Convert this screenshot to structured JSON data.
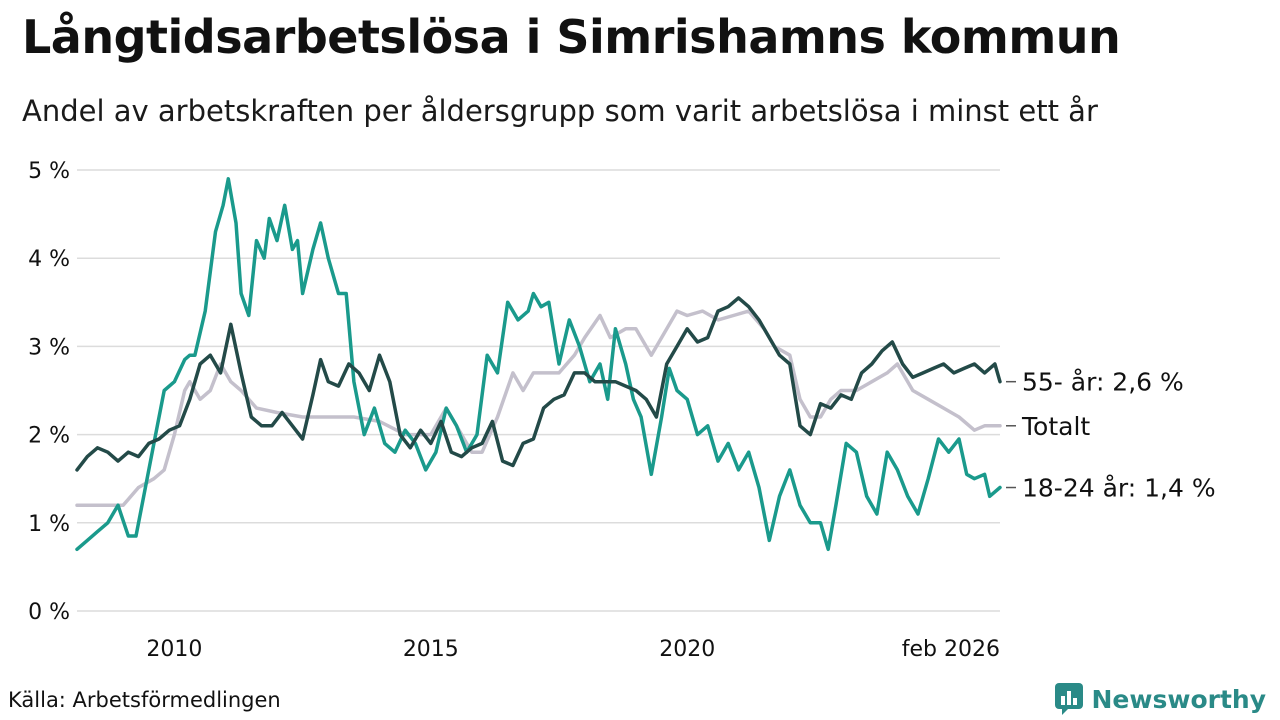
{
  "chart_data": {
    "type": "line",
    "title": "Långtidsarbetslösa i Simrishamns kommun",
    "subtitle": "Andel av arbetskraften per åldersgrupp som varit arbetslösa i minst ett år",
    "y_unit": "%",
    "ylim": [
      0,
      5
    ],
    "y_ticks": [
      {
        "value": 0,
        "label": "0 %"
      },
      {
        "value": 1,
        "label": "1 %"
      },
      {
        "value": 2,
        "label": "2 %"
      },
      {
        "value": 3,
        "label": "3 %"
      },
      {
        "value": 4,
        "label": "4 %"
      },
      {
        "value": 5,
        "label": "5 %"
      }
    ],
    "xlim": [
      2008.1,
      2026.1
    ],
    "x_ticks": [
      {
        "value": 2010,
        "label": "2010"
      },
      {
        "value": 2015,
        "label": "2015"
      },
      {
        "value": 2020,
        "label": "2020"
      },
      {
        "value": 2026.1,
        "label": "feb 2026"
      }
    ],
    "series": [
      {
        "name": "Totalt",
        "end_label": "Totalt",
        "color": "#c4c0cc",
        "points": [
          [
            2008.1,
            1.2
          ],
          [
            2009.0,
            1.2
          ],
          [
            2009.3,
            1.4
          ],
          [
            2009.6,
            1.5
          ],
          [
            2009.8,
            1.6
          ],
          [
            2010.0,
            2.0
          ],
          [
            2010.2,
            2.5
          ],
          [
            2010.3,
            2.6
          ],
          [
            2010.5,
            2.4
          ],
          [
            2010.7,
            2.5
          ],
          [
            2010.9,
            2.8
          ],
          [
            2011.1,
            2.6
          ],
          [
            2011.3,
            2.5
          ],
          [
            2011.6,
            2.3
          ],
          [
            2012.0,
            2.25
          ],
          [
            2012.5,
            2.2
          ],
          [
            2013.0,
            2.2
          ],
          [
            2013.5,
            2.2
          ],
          [
            2014.0,
            2.15
          ],
          [
            2014.5,
            2.0
          ],
          [
            2015.0,
            2.0
          ],
          [
            2015.3,
            2.3
          ],
          [
            2015.5,
            2.1
          ],
          [
            2015.8,
            1.8
          ],
          [
            2016.0,
            1.8
          ],
          [
            2016.3,
            2.2
          ],
          [
            2016.6,
            2.7
          ],
          [
            2016.8,
            2.5
          ],
          [
            2017.0,
            2.7
          ],
          [
            2017.5,
            2.7
          ],
          [
            2017.8,
            2.9
          ],
          [
            2018.0,
            3.1
          ],
          [
            2018.3,
            3.35
          ],
          [
            2018.5,
            3.1
          ],
          [
            2018.8,
            3.2
          ],
          [
            2019.0,
            3.2
          ],
          [
            2019.3,
            2.9
          ],
          [
            2019.5,
            3.1
          ],
          [
            2019.8,
            3.4
          ],
          [
            2020.0,
            3.35
          ],
          [
            2020.3,
            3.4
          ],
          [
            2020.6,
            3.3
          ],
          [
            2020.9,
            3.35
          ],
          [
            2021.2,
            3.4
          ],
          [
            2021.5,
            3.2
          ],
          [
            2021.7,
            3.0
          ],
          [
            2022.0,
            2.9
          ],
          [
            2022.2,
            2.4
          ],
          [
            2022.4,
            2.2
          ],
          [
            2022.6,
            2.2
          ],
          [
            2022.8,
            2.4
          ],
          [
            2023.0,
            2.5
          ],
          [
            2023.3,
            2.5
          ],
          [
            2023.6,
            2.6
          ],
          [
            2023.9,
            2.7
          ],
          [
            2024.1,
            2.8
          ],
          [
            2024.4,
            2.5
          ],
          [
            2024.7,
            2.4
          ],
          [
            2025.0,
            2.3
          ],
          [
            2025.3,
            2.2
          ],
          [
            2025.6,
            2.05
          ],
          [
            2025.8,
            2.1
          ],
          [
            2026.1,
            2.1
          ]
        ]
      },
      {
        "name": "18-24 år",
        "end_label": "18-24 år: 1,4 %",
        "color": "#1a9a8c",
        "points": [
          [
            2008.1,
            0.7
          ],
          [
            2008.3,
            0.8
          ],
          [
            2008.5,
            0.9
          ],
          [
            2008.7,
            1.0
          ],
          [
            2008.9,
            1.2
          ],
          [
            2009.1,
            0.85
          ],
          [
            2009.25,
            0.85
          ],
          [
            2009.4,
            1.3
          ],
          [
            2009.6,
            1.9
          ],
          [
            2009.8,
            2.5
          ],
          [
            2010.0,
            2.6
          ],
          [
            2010.2,
            2.85
          ],
          [
            2010.3,
            2.9
          ],
          [
            2010.4,
            2.9
          ],
          [
            2010.6,
            3.4
          ],
          [
            2010.8,
            4.3
          ],
          [
            2010.95,
            4.6
          ],
          [
            2011.05,
            4.9
          ],
          [
            2011.2,
            4.4
          ],
          [
            2011.3,
            3.6
          ],
          [
            2011.45,
            3.35
          ],
          [
            2011.6,
            4.2
          ],
          [
            2011.75,
            4.0
          ],
          [
            2011.85,
            4.45
          ],
          [
            2012.0,
            4.2
          ],
          [
            2012.15,
            4.6
          ],
          [
            2012.3,
            4.1
          ],
          [
            2012.4,
            4.2
          ],
          [
            2012.5,
            3.6
          ],
          [
            2012.7,
            4.1
          ],
          [
            2012.85,
            4.4
          ],
          [
            2013.0,
            4.0
          ],
          [
            2013.2,
            3.6
          ],
          [
            2013.35,
            3.6
          ],
          [
            2013.5,
            2.6
          ],
          [
            2013.7,
            2.0
          ],
          [
            2013.9,
            2.3
          ],
          [
            2014.1,
            1.9
          ],
          [
            2014.3,
            1.8
          ],
          [
            2014.5,
            2.05
          ],
          [
            2014.7,
            1.9
          ],
          [
            2014.9,
            1.6
          ],
          [
            2015.1,
            1.8
          ],
          [
            2015.3,
            2.3
          ],
          [
            2015.5,
            2.1
          ],
          [
            2015.7,
            1.8
          ],
          [
            2015.9,
            2.0
          ],
          [
            2016.1,
            2.9
          ],
          [
            2016.3,
            2.7
          ],
          [
            2016.5,
            3.5
          ],
          [
            2016.7,
            3.3
          ],
          [
            2016.9,
            3.4
          ],
          [
            2017.0,
            3.6
          ],
          [
            2017.15,
            3.45
          ],
          [
            2017.3,
            3.5
          ],
          [
            2017.5,
            2.8
          ],
          [
            2017.7,
            3.3
          ],
          [
            2017.9,
            3.0
          ],
          [
            2018.1,
            2.6
          ],
          [
            2018.3,
            2.8
          ],
          [
            2018.45,
            2.4
          ],
          [
            2018.6,
            3.2
          ],
          [
            2018.8,
            2.8
          ],
          [
            2018.95,
            2.4
          ],
          [
            2019.1,
            2.2
          ],
          [
            2019.3,
            1.55
          ],
          [
            2019.5,
            2.2
          ],
          [
            2019.65,
            2.75
          ],
          [
            2019.8,
            2.5
          ],
          [
            2020.0,
            2.4
          ],
          [
            2020.2,
            2.0
          ],
          [
            2020.4,
            2.1
          ],
          [
            2020.6,
            1.7
          ],
          [
            2020.8,
            1.9
          ],
          [
            2021.0,
            1.6
          ],
          [
            2021.2,
            1.8
          ],
          [
            2021.4,
            1.4
          ],
          [
            2021.6,
            0.8
          ],
          [
            2021.8,
            1.3
          ],
          [
            2022.0,
            1.6
          ],
          [
            2022.2,
            1.2
          ],
          [
            2022.4,
            1.0
          ],
          [
            2022.6,
            1.0
          ],
          [
            2022.75,
            0.7
          ],
          [
            2022.9,
            1.2
          ],
          [
            2023.1,
            1.9
          ],
          [
            2023.3,
            1.8
          ],
          [
            2023.5,
            1.3
          ],
          [
            2023.7,
            1.1
          ],
          [
            2023.9,
            1.8
          ],
          [
            2024.1,
            1.6
          ],
          [
            2024.3,
            1.3
          ],
          [
            2024.5,
            1.1
          ],
          [
            2024.7,
            1.5
          ],
          [
            2024.9,
            1.95
          ],
          [
            2025.1,
            1.8
          ],
          [
            2025.3,
            1.95
          ],
          [
            2025.45,
            1.55
          ],
          [
            2025.6,
            1.5
          ],
          [
            2025.8,
            1.55
          ],
          [
            2025.9,
            1.3
          ],
          [
            2026.1,
            1.4
          ]
        ]
      },
      {
        "name": "55- år",
        "end_label": "55- år: 2,6 %",
        "color": "#234a48",
        "points": [
          [
            2008.1,
            1.6
          ],
          [
            2008.3,
            1.75
          ],
          [
            2008.5,
            1.85
          ],
          [
            2008.7,
            1.8
          ],
          [
            2008.9,
            1.7
          ],
          [
            2009.1,
            1.8
          ],
          [
            2009.3,
            1.75
          ],
          [
            2009.5,
            1.9
          ],
          [
            2009.7,
            1.95
          ],
          [
            2009.9,
            2.05
          ],
          [
            2010.1,
            2.1
          ],
          [
            2010.3,
            2.4
          ],
          [
            2010.5,
            2.8
          ],
          [
            2010.7,
            2.9
          ],
          [
            2010.9,
            2.7
          ],
          [
            2011.1,
            3.25
          ],
          [
            2011.3,
            2.7
          ],
          [
            2011.5,
            2.2
          ],
          [
            2011.7,
            2.1
          ],
          [
            2011.9,
            2.1
          ],
          [
            2012.1,
            2.25
          ],
          [
            2012.3,
            2.1
          ],
          [
            2012.5,
            1.95
          ],
          [
            2012.7,
            2.45
          ],
          [
            2012.85,
            2.85
          ],
          [
            2013.0,
            2.6
          ],
          [
            2013.2,
            2.55
          ],
          [
            2013.4,
            2.8
          ],
          [
            2013.6,
            2.7
          ],
          [
            2013.8,
            2.5
          ],
          [
            2014.0,
            2.9
          ],
          [
            2014.2,
            2.6
          ],
          [
            2014.4,
            2.0
          ],
          [
            2014.6,
            1.85
          ],
          [
            2014.8,
            2.05
          ],
          [
            2015.0,
            1.9
          ],
          [
            2015.2,
            2.15
          ],
          [
            2015.4,
            1.8
          ],
          [
            2015.6,
            1.75
          ],
          [
            2015.8,
            1.85
          ],
          [
            2016.0,
            1.9
          ],
          [
            2016.2,
            2.15
          ],
          [
            2016.4,
            1.7
          ],
          [
            2016.6,
            1.65
          ],
          [
            2016.8,
            1.9
          ],
          [
            2017.0,
            1.95
          ],
          [
            2017.2,
            2.3
          ],
          [
            2017.4,
            2.4
          ],
          [
            2017.6,
            2.45
          ],
          [
            2017.8,
            2.7
          ],
          [
            2018.0,
            2.7
          ],
          [
            2018.2,
            2.6
          ],
          [
            2018.4,
            2.6
          ],
          [
            2018.6,
            2.6
          ],
          [
            2018.8,
            2.55
          ],
          [
            2019.0,
            2.5
          ],
          [
            2019.2,
            2.4
          ],
          [
            2019.4,
            2.2
          ],
          [
            2019.6,
            2.8
          ],
          [
            2019.8,
            3.0
          ],
          [
            2020.0,
            3.2
          ],
          [
            2020.2,
            3.05
          ],
          [
            2020.4,
            3.1
          ],
          [
            2020.6,
            3.4
          ],
          [
            2020.8,
            3.45
          ],
          [
            2021.0,
            3.55
          ],
          [
            2021.2,
            3.45
          ],
          [
            2021.4,
            3.3
          ],
          [
            2021.6,
            3.1
          ],
          [
            2021.8,
            2.9
          ],
          [
            2022.0,
            2.8
          ],
          [
            2022.2,
            2.1
          ],
          [
            2022.4,
            2.0
          ],
          [
            2022.6,
            2.35
          ],
          [
            2022.8,
            2.3
          ],
          [
            2023.0,
            2.45
          ],
          [
            2023.2,
            2.4
          ],
          [
            2023.4,
            2.7
          ],
          [
            2023.6,
            2.8
          ],
          [
            2023.8,
            2.95
          ],
          [
            2024.0,
            3.05
          ],
          [
            2024.2,
            2.8
          ],
          [
            2024.4,
            2.65
          ],
          [
            2024.6,
            2.7
          ],
          [
            2024.8,
            2.75
          ],
          [
            2025.0,
            2.8
          ],
          [
            2025.2,
            2.7
          ],
          [
            2025.4,
            2.75
          ],
          [
            2025.6,
            2.8
          ],
          [
            2025.8,
            2.7
          ],
          [
            2026.0,
            2.8
          ],
          [
            2026.1,
            2.6
          ]
        ]
      }
    ]
  },
  "footer": {
    "source": "Källa: Arbetsförmedlingen",
    "brand": "Newsworthy"
  }
}
